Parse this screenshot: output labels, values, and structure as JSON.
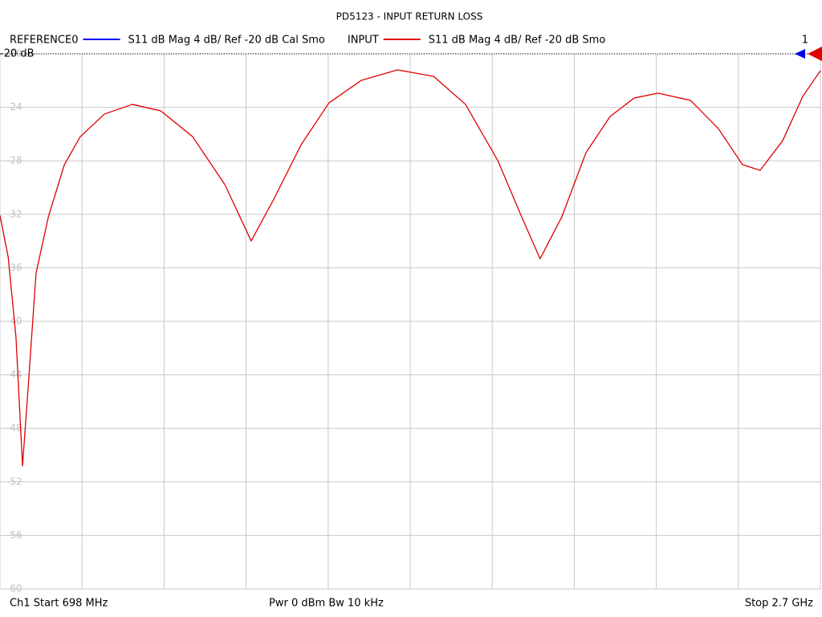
{
  "chart_data": {
    "type": "line",
    "title": "PD5123 - INPUT RETURN LOSS",
    "legend": [
      {
        "name": "REFERENCE0",
        "text": "S11  dB Mag  4 dB/ Ref -20 dB  Cal Smo",
        "color": "#0000ff"
      },
      {
        "name": "INPUT",
        "text": "S11  dB Mag  4 dB/ Ref -20 dB  Smo",
        "color": "#e00000"
      }
    ],
    "channel_number": "1",
    "reference_label": "-20 dB",
    "footer": {
      "start": "Ch1  Start  698 MHz",
      "power": "Pwr  0 dBm  Bw  10 kHz",
      "stop": "Stop  2.7 GHz"
    },
    "xlim": [
      698,
      2700
    ],
    "ylim": [
      -60,
      -20
    ],
    "yticks": [
      -20,
      -24,
      -28,
      -32,
      -36,
      -40,
      -44,
      -48,
      -52,
      -56,
      -60
    ],
    "grid": true,
    "x": [
      698,
      718,
      737,
      753,
      767,
      786,
      816,
      855,
      894,
      953,
      1021,
      1090,
      1168,
      1247,
      1311,
      1364,
      1433,
      1501,
      1580,
      1668,
      1756,
      1834,
      1913,
      1971,
      2016,
      2069,
      2128,
      2187,
      2246,
      2304,
      2383,
      2451,
      2510,
      2553,
      2608,
      2657,
      2700
    ],
    "series": [
      {
        "name": "INPUT",
        "color": "#e00000",
        "values": [
          -32.07,
          -35.2,
          -41.2,
          -50.81,
          -44.8,
          -36.4,
          -32.19,
          -28.29,
          -26.19,
          -24.5,
          -23.78,
          -24.26,
          -26.19,
          -29.79,
          -33.99,
          -30.99,
          -26.79,
          -23.66,
          -21.98,
          -21.2,
          -21.68,
          -23.78,
          -27.99,
          -32.19,
          -35.32,
          -32.19,
          -27.39,
          -24.68,
          -23.3,
          -22.94,
          -23.48,
          -25.59,
          -28.29,
          -28.71,
          -26.49,
          -23.18,
          -21.26
        ]
      }
    ]
  }
}
